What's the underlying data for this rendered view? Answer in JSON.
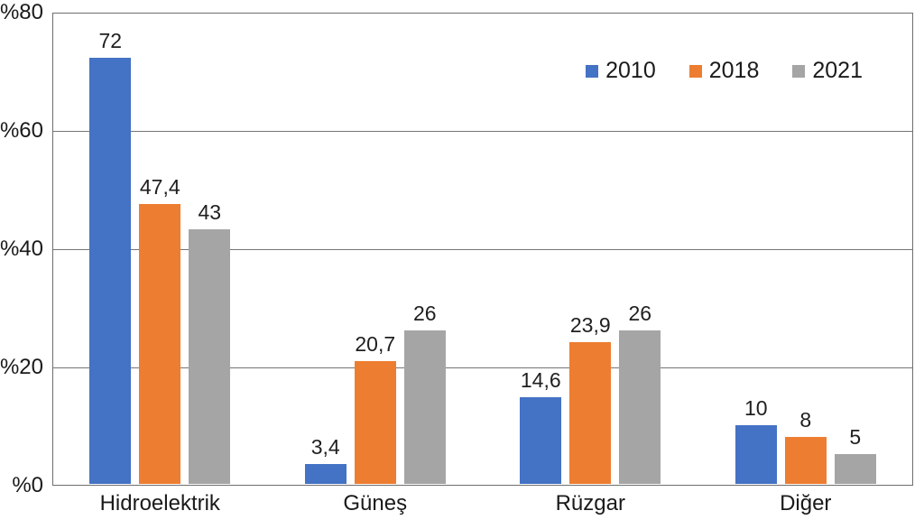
{
  "chart_data": {
    "type": "bar",
    "title": "",
    "categories": [
      "Hidroelektrik",
      "Güneş",
      "Rüzgar",
      "Diğer"
    ],
    "series": [
      {
        "name": "2010",
        "color": "#4472C4",
        "values": [
          72,
          3.4,
          14.6,
          10
        ],
        "labels": [
          "72",
          "3,4",
          "14,6",
          "10"
        ]
      },
      {
        "name": "2018",
        "color": "#ED7D31",
        "values": [
          47.4,
          20.7,
          23.9,
          8
        ],
        "labels": [
          "47,4",
          "20,7",
          "23,9",
          "8"
        ]
      },
      {
        "name": "2021",
        "color": "#A5A5A5",
        "values": [
          43,
          26,
          26,
          5
        ],
        "labels": [
          "43",
          "26",
          "26",
          "5"
        ]
      }
    ],
    "ylim": [
      0,
      80
    ],
    "yticks": [
      {
        "value": 0,
        "label": "%0"
      },
      {
        "value": 20,
        "label": "%20"
      },
      {
        "value": 40,
        "label": "%40"
      },
      {
        "value": 60,
        "label": "%60"
      },
      {
        "value": 80,
        "label": "%80"
      }
    ],
    "grid": true,
    "legend_position": "top-right",
    "gridline_color": "#757575",
    "axis_color": "#6e6e6e"
  }
}
